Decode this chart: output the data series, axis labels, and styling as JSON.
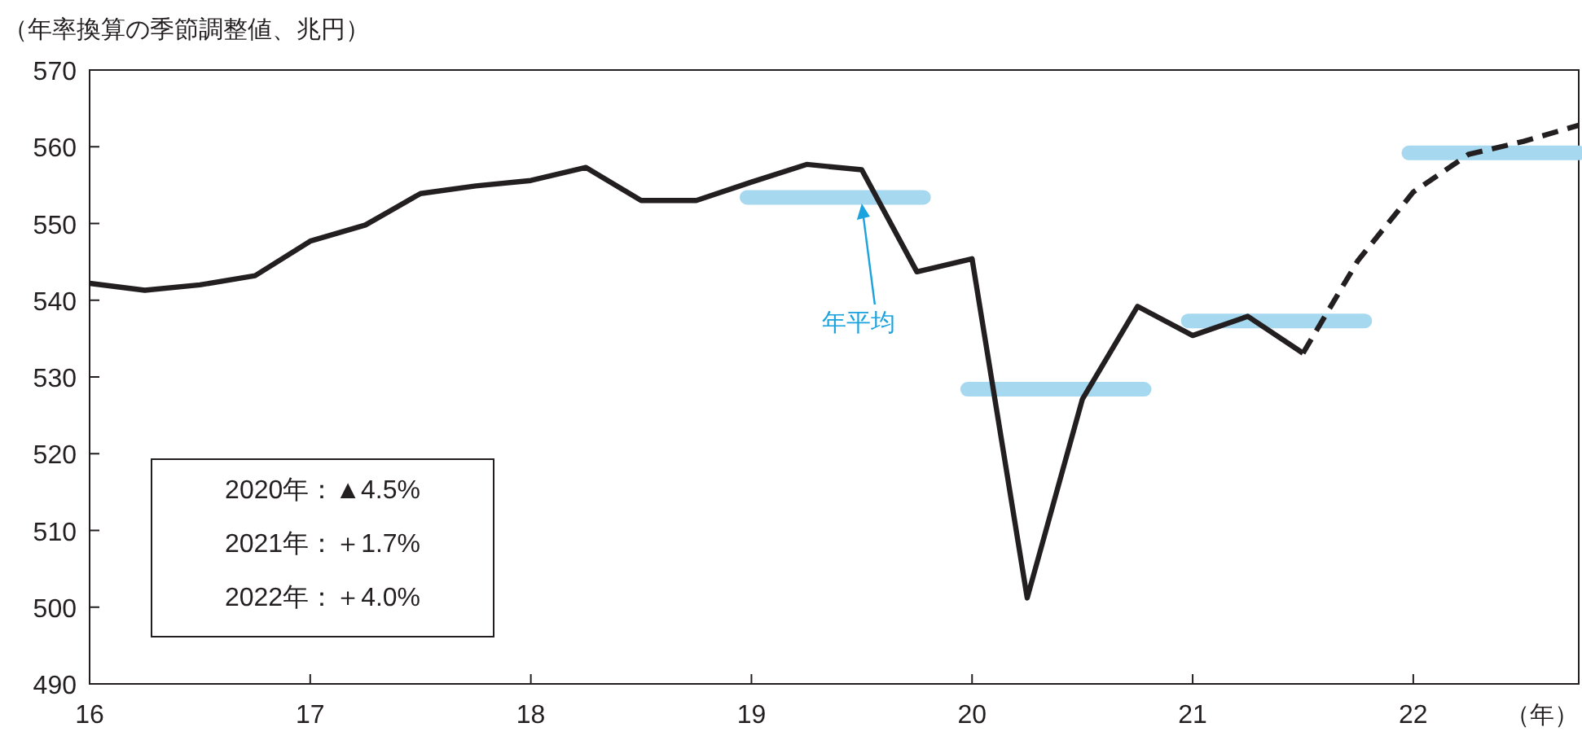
{
  "chart_data": {
    "type": "line",
    "ylabel": "（年率換算の季節調整値、兆円）",
    "xlabel": "（年）",
    "xlim": [
      16,
      22.75
    ],
    "ylim": [
      490,
      570
    ],
    "xticks": [
      16,
      17,
      18,
      19,
      20,
      21,
      22
    ],
    "yticks": [
      490,
      500,
      510,
      520,
      530,
      540,
      550,
      560,
      570
    ],
    "grid": false,
    "series": [
      {
        "color": "#231f20",
        "line_style": "solid",
        "x": [
          16,
          16.25,
          16.5,
          16.75,
          17,
          17.25,
          17.5,
          17.75,
          18,
          18.25,
          18.5,
          18.75,
          19,
          19.25,
          19.5,
          19.75,
          20,
          20.25,
          20.5,
          20.75,
          21,
          21.25,
          21.5
        ],
        "values": [
          542.2,
          541.3,
          542.0,
          543.2,
          547.7,
          549.8,
          553.9,
          554.9,
          555.6,
          557.3,
          553.0,
          553.0,
          555.4,
          557.7,
          557.0,
          543.7,
          545.4,
          501.2,
          527.1,
          539.2,
          535.4,
          537.9,
          533.1
        ]
      },
      {
        "color": "#231f20",
        "line_style": "dashed",
        "x": [
          21.5,
          21.75,
          22,
          22.25,
          22.5,
          22.75
        ],
        "values": [
          533.1,
          545.2,
          554.1,
          559.0,
          560.7,
          562.8
        ]
      },
      {
        "color": "#a6d8f0",
        "line_style": "solid",
        "x": [
          18.98,
          19.78
        ],
        "values": [
          553.4,
          553.4
        ]
      },
      {
        "color": "#a6d8f0",
        "line_style": "solid",
        "x": [
          19.98,
          20.78
        ],
        "values": [
          528.4,
          528.4
        ]
      },
      {
        "color": "#a6d8f0",
        "line_style": "solid",
        "x": [
          20.98,
          21.78
        ],
        "values": [
          537.3,
          537.3
        ]
      },
      {
        "color": "#a6d8f0",
        "line_style": "solid",
        "x": [
          21.98,
          22.75
        ],
        "values": [
          559.2,
          559.2
        ]
      }
    ],
    "annotations": [
      {
        "text": "年平均",
        "x": 19.5,
        "y": 552.6
      },
      "2020年：▲4.5%",
      "2021年：＋1.7%",
      "2022年：＋4.0%"
    ]
  }
}
